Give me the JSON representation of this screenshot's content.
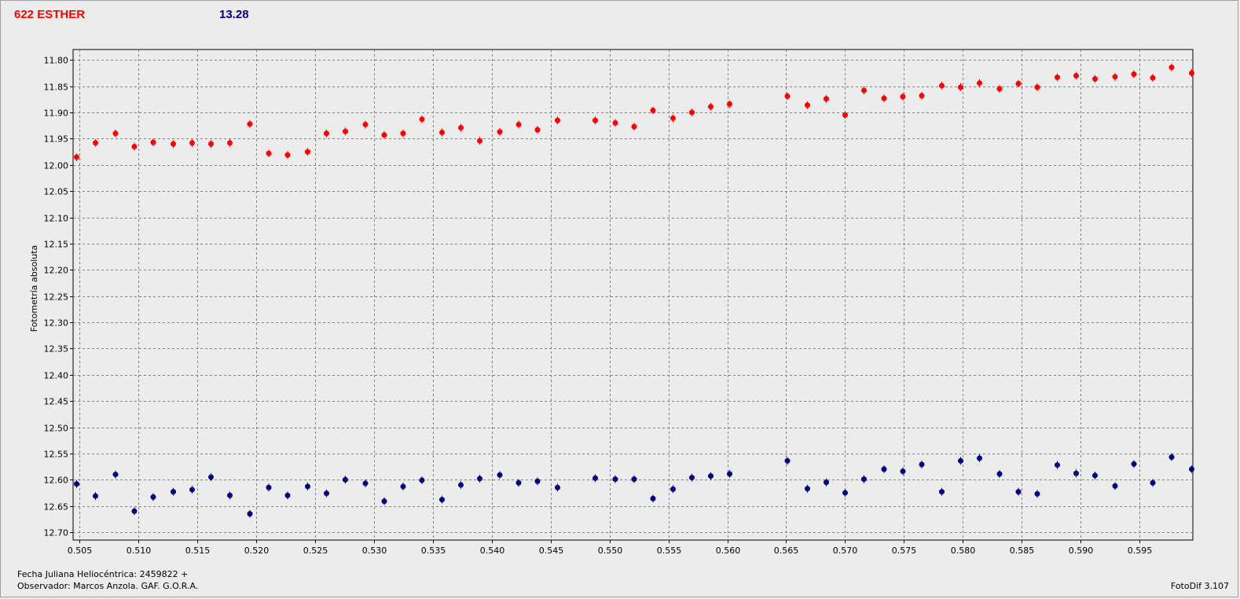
{
  "header": {
    "object_name": "622 ESTHER",
    "magnitude": "13.28"
  },
  "footer": {
    "jd_label": "Fecha Juliana Heliocéntrica: 2459822 +",
    "observer_label": "Observador:  Marcos Anzola. GAF. G.O.R.A.",
    "software": "FotoDif 3.107"
  },
  "colors": {
    "series_red": "#ff0000",
    "series_blue": "#000080",
    "grid": "#808080"
  },
  "chart_data": {
    "type": "scatter",
    "title": "",
    "xlabel": "",
    "ylabel": "Fotometría absoluta",
    "xlim": [
      0.5045,
      0.5995
    ],
    "ylim": [
      11.78,
      12.715
    ],
    "y_inverted": true,
    "grid": true,
    "x_ticks": [
      "0.505",
      "0.510",
      "0.515",
      "0.520",
      "0.525",
      "0.530",
      "0.535",
      "0.540",
      "0.545",
      "0.550",
      "0.555",
      "0.560",
      "0.565",
      "0.570",
      "0.575",
      "0.580",
      "0.585",
      "0.590",
      "0.595"
    ],
    "y_ticks": [
      "11.80",
      "11.85",
      "11.90",
      "11.95",
      "12.00",
      "12.05",
      "12.10",
      "12.15",
      "12.20",
      "12.25",
      "12.30",
      "12.35",
      "12.40",
      "12.45",
      "12.50",
      "12.55",
      "12.60",
      "12.65",
      "12.70"
    ],
    "series": [
      {
        "color": "#ff0000",
        "x": [
          0.5048,
          0.5064,
          0.5081,
          0.5097,
          0.5113,
          0.513,
          0.5146,
          0.5162,
          0.5178,
          0.5195,
          0.5211,
          0.5227,
          0.5244,
          0.526,
          0.5276,
          0.5293,
          0.5309,
          0.5325,
          0.5341,
          0.5358,
          0.5374,
          0.539,
          0.5407,
          0.5423,
          0.5439,
          0.5456,
          0.5488,
          0.5505,
          0.5521,
          0.5537,
          0.5554,
          0.557,
          0.5586,
          0.5602,
          0.5651,
          0.5668,
          0.5684,
          0.57,
          0.5716,
          0.5733,
          0.5749,
          0.5765,
          0.5782,
          0.5798,
          0.5814,
          0.5831,
          0.5847,
          0.5863,
          0.588,
          0.5896,
          0.5912,
          0.5929,
          0.5945,
          0.5961,
          0.5977,
          0.5994
        ],
        "y": [
          11.985,
          11.958,
          11.94,
          11.965,
          11.957,
          11.96,
          11.958,
          11.96,
          11.958,
          11.922,
          11.978,
          11.981,
          11.975,
          11.94,
          11.936,
          11.923,
          11.943,
          11.94,
          11.913,
          11.938,
          11.929,
          11.954,
          11.937,
          11.923,
          11.933,
          11.915,
          11.915,
          11.92,
          11.927,
          11.896,
          11.911,
          11.9,
          11.889,
          11.884,
          11.869,
          11.886,
          11.874,
          11.905,
          11.858,
          11.873,
          11.87,
          11.868,
          11.849,
          11.852,
          11.844,
          11.855,
          11.845,
          11.852,
          11.833,
          11.83,
          11.836,
          11.832,
          11.827,
          11.834,
          11.814,
          11.825
        ]
      },
      {
        "color": "#000080",
        "x": [
          0.5048,
          0.5064,
          0.5081,
          0.5097,
          0.5113,
          0.513,
          0.5146,
          0.5162,
          0.5178,
          0.5195,
          0.5211,
          0.5227,
          0.5244,
          0.526,
          0.5276,
          0.5293,
          0.5309,
          0.5325,
          0.5341,
          0.5358,
          0.5374,
          0.539,
          0.5407,
          0.5423,
          0.5439,
          0.5456,
          0.5488,
          0.5505,
          0.5521,
          0.5537,
          0.5554,
          0.557,
          0.5586,
          0.5602,
          0.5651,
          0.5668,
          0.5684,
          0.57,
          0.5716,
          0.5733,
          0.5749,
          0.5765,
          0.5782,
          0.5798,
          0.5814,
          0.5831,
          0.5847,
          0.5863,
          0.588,
          0.5896,
          0.5912,
          0.5929,
          0.5945,
          0.5961,
          0.5977,
          0.5994
        ],
        "y": [
          12.608,
          12.631,
          12.59,
          12.66,
          12.633,
          12.623,
          12.619,
          12.595,
          12.63,
          12.665,
          12.615,
          12.63,
          12.613,
          12.626,
          12.6,
          12.607,
          12.641,
          12.613,
          12.601,
          12.638,
          12.61,
          12.598,
          12.591,
          12.606,
          12.603,
          12.615,
          12.597,
          12.599,
          12.599,
          12.636,
          12.618,
          12.596,
          12.593,
          12.589,
          12.564,
          12.617,
          12.605,
          12.625,
          12.599,
          12.58,
          12.584,
          12.571,
          12.623,
          12.564,
          12.559,
          12.589,
          12.623,
          12.627,
          12.572,
          12.588,
          12.592,
          12.612,
          12.57,
          12.606,
          12.557,
          12.58
        ]
      }
    ]
  }
}
